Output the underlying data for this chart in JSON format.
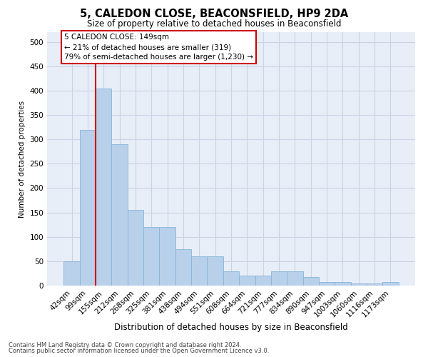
{
  "title": "5, CALEDON CLOSE, BEACONSFIELD, HP9 2DA",
  "subtitle": "Size of property relative to detached houses in Beaconsfield",
  "xlabel": "Distribution of detached houses by size in Beaconsfield",
  "ylabel": "Number of detached properties",
  "categories": [
    "42sqm",
    "99sqm",
    "155sqm",
    "212sqm",
    "268sqm",
    "325sqm",
    "381sqm",
    "438sqm",
    "494sqm",
    "551sqm",
    "608sqm",
    "664sqm",
    "721sqm",
    "777sqm",
    "834sqm",
    "890sqm",
    "947sqm",
    "1003sqm",
    "1060sqm",
    "1116sqm",
    "1173sqm"
  ],
  "values": [
    50,
    320,
    405,
    290,
    155,
    120,
    120,
    75,
    60,
    60,
    30,
    20,
    20,
    30,
    30,
    18,
    8,
    7,
    5,
    5,
    7
  ],
  "bar_color": "#b8d0ea",
  "bar_edge_color": "#88b4d8",
  "property_line_color": "#cc0000",
  "annotation_box_edge": "#cc0000",
  "annotation_box_fill": "#ffffff",
  "property_label": "5 CALEDON CLOSE: 149sqm",
  "annotation_line1": "← 21% of detached houses are smaller (319)",
  "annotation_line2": "79% of semi-detached houses are larger (1,230) →",
  "ylim": [
    0,
    520
  ],
  "yticks": [
    0,
    50,
    100,
    150,
    200,
    250,
    300,
    350,
    400,
    450,
    500
  ],
  "grid_color": "#c8d4e4",
  "background_color": "#e8eef8",
  "footer_line1": "Contains HM Land Registry data © Crown copyright and database right 2024.",
  "footer_line2": "Contains public sector information licensed under the Open Government Licence v3.0."
}
